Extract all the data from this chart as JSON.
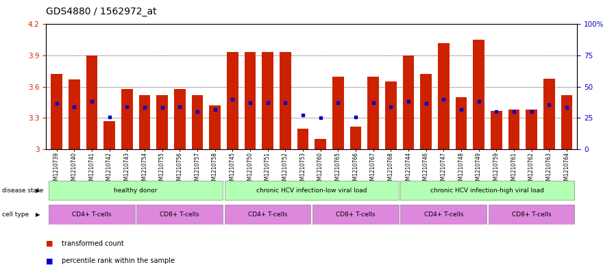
{
  "title": "GDS4880 / 1562972_at",
  "samples": [
    "GSM1210739",
    "GSM1210740",
    "GSM1210741",
    "GSM1210742",
    "GSM1210743",
    "GSM1210754",
    "GSM1210755",
    "GSM1210756",
    "GSM1210757",
    "GSM1210758",
    "GSM1210745",
    "GSM1210750",
    "GSM1210751",
    "GSM1210752",
    "GSM1210753",
    "GSM1210760",
    "GSM1210765",
    "GSM1210766",
    "GSM1210767",
    "GSM1210768",
    "GSM1210744",
    "GSM1210746",
    "GSM1210747",
    "GSM1210748",
    "GSM1210749",
    "GSM1210759",
    "GSM1210761",
    "GSM1210762",
    "GSM1210763",
    "GSM1210764"
  ],
  "red_values": [
    3.72,
    3.67,
    3.9,
    3.27,
    3.58,
    3.52,
    3.52,
    3.58,
    3.52,
    3.42,
    3.93,
    3.93,
    3.93,
    3.93,
    3.2,
    3.1,
    3.7,
    3.22,
    3.7,
    3.65,
    3.9,
    3.72,
    4.02,
    3.5,
    4.05,
    3.37,
    3.38,
    3.38,
    3.68,
    3.52
  ],
  "blue_values": [
    3.44,
    3.41,
    3.46,
    3.31,
    3.41,
    3.4,
    3.4,
    3.41,
    3.36,
    3.38,
    3.48,
    3.45,
    3.45,
    3.45,
    3.33,
    3.3,
    3.45,
    3.31,
    3.45,
    3.41,
    3.46,
    3.44,
    3.48,
    3.38,
    3.46,
    3.36,
    3.36,
    3.36,
    3.43,
    3.4
  ],
  "ymin": 3.0,
  "ymax": 4.2,
  "bar_color": "#cc2200",
  "blue_color": "#0000cc",
  "tick_color_left": "#cc2200",
  "tick_color_right": "#0000cc",
  "title_fontsize": 10,
  "bar_width": 0.65,
  "green_light": "#b3ffb3",
  "purple_light": "#dd88dd",
  "ds_groups": [
    {
      "label": "healthy donor",
      "start": 0,
      "end": 9
    },
    {
      "label": "chronic HCV infection-low viral load",
      "start": 10,
      "end": 19
    },
    {
      "label": "chronic HCV infection-high viral load",
      "start": 20,
      "end": 29
    }
  ],
  "ct_groups": [
    {
      "label": "CD4+ T-cells",
      "start": 0,
      "end": 4
    },
    {
      "label": "CD8+ T-cells",
      "start": 5,
      "end": 9
    },
    {
      "label": "CD4+ T-cells",
      "start": 10,
      "end": 14
    },
    {
      "label": "CD8+ T-cells",
      "start": 15,
      "end": 19
    },
    {
      "label": "CD4+ T-cells",
      "start": 20,
      "end": 24
    },
    {
      "label": "CD8+ T-cells",
      "start": 25,
      "end": 29
    }
  ]
}
